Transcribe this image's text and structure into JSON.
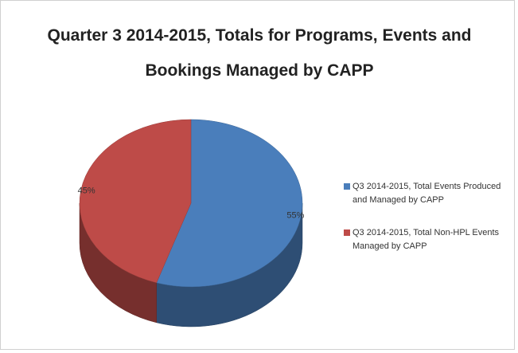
{
  "chart_data": {
    "type": "pie",
    "title": "Quarter 3 2014-2015, Totals for Programs, Events and Bookings Managed by CAPP",
    "categories": [
      "Q3 2014-2015, Total Events Produced and Managed by CAPP",
      "Q3 2014-2015, Total Non-HPL Events Managed by CAPP"
    ],
    "values": [
      55,
      45
    ],
    "value_labels": [
      "55%",
      "45%"
    ],
    "colors": [
      "#4a7ebb",
      "#be4b48"
    ],
    "legend": "right",
    "style": "3d"
  }
}
